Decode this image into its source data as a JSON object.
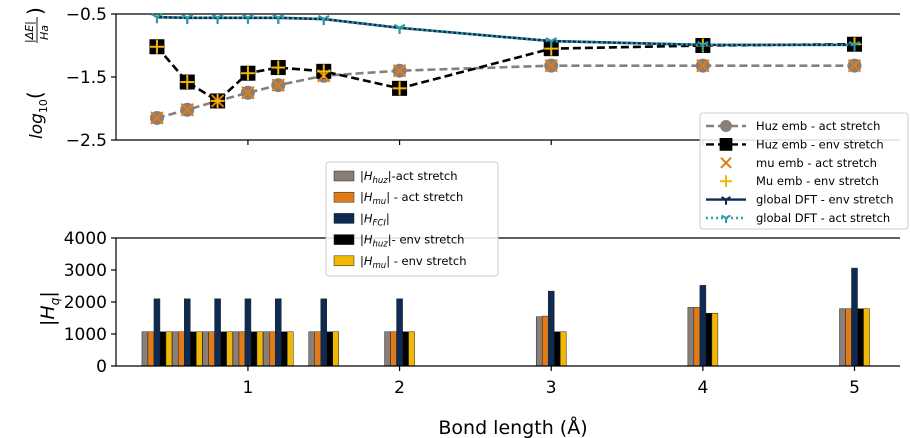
{
  "chart_data": [
    {
      "type": "line",
      "ylabel": "log10(|ΔE|/Ha)",
      "ylabel_parts": {
        "base": "log",
        "sub": "10",
        "num": "|ΔE|",
        "den": "Ha"
      },
      "xlim": [
        0.13,
        5.3
      ],
      "ylim": [
        -2.5,
        -0.5
      ],
      "yticks": [
        -0.5,
        -1.5,
        -2.5
      ],
      "ytick_labels": [
        "−0.5",
        "−1.5",
        "−2.5"
      ],
      "xticks": [
        1,
        2,
        3,
        4,
        5
      ],
      "grid": false,
      "legend_position": "bottom-right",
      "series": [
        {
          "name": "Huz emb - act stretch",
          "color": "#8a7f78",
          "style": "dashed",
          "marker": "circle",
          "x": [
            0.4,
            0.6,
            0.8,
            1.0,
            1.2,
            1.5,
            2.0,
            3.0,
            4.0,
            5.0
          ],
          "y": [
            -2.15,
            -2.02,
            -1.88,
            -1.75,
            -1.63,
            -1.48,
            -1.4,
            -1.32,
            -1.32,
            -1.32
          ]
        },
        {
          "name": "Huz emb - env stretch",
          "color": "#000000",
          "style": "dashed",
          "marker": "square",
          "x": [
            0.4,
            0.6,
            0.8,
            1.0,
            1.2,
            1.5,
            2.0,
            3.0,
            4.0,
            5.0
          ],
          "y": [
            -1.02,
            -1.58,
            -1.88,
            -1.44,
            -1.35,
            -1.41,
            -1.68,
            -1.05,
            -1.0,
            -0.98
          ]
        },
        {
          "name": "mu emb - act stretch",
          "color": "#e07b18",
          "style": "none",
          "marker": "x",
          "x": [
            0.4,
            0.6,
            0.8,
            1.0,
            1.2,
            1.5,
            2.0,
            3.0,
            4.0,
            5.0
          ],
          "y": [
            -2.15,
            -2.02,
            -1.88,
            -1.75,
            -1.63,
            -1.48,
            -1.4,
            -1.32,
            -1.32,
            -1.32
          ]
        },
        {
          "name": "Mu emb - env stretch",
          "color": "#f2b705",
          "style": "none",
          "marker": "plus",
          "x": [
            0.4,
            0.6,
            0.8,
            1.0,
            1.2,
            1.5,
            2.0,
            3.0,
            4.0,
            5.0
          ],
          "y": [
            -1.02,
            -1.58,
            -1.88,
            -1.44,
            -1.35,
            -1.41,
            -1.68,
            -1.05,
            -1.0,
            -0.98
          ]
        },
        {
          "name": "global DFT - env stretch",
          "color": "#0d2b55",
          "style": "solid",
          "marker": "tri_down",
          "x": [
            0.4,
            0.6,
            0.8,
            1.0,
            1.2,
            1.5,
            2.0,
            3.0,
            4.0,
            5.0
          ],
          "y": [
            -0.55,
            -0.56,
            -0.56,
            -0.56,
            -0.56,
            -0.58,
            -0.72,
            -0.93,
            -0.99,
            -0.99
          ]
        },
        {
          "name": "global DFT - act stretch",
          "color": "#2a9fa8",
          "style": "dotted",
          "marker": "tri_down",
          "x": [
            0.4,
            0.6,
            0.8,
            1.0,
            1.2,
            1.5,
            2.0,
            3.0,
            4.0,
            5.0
          ],
          "y": [
            -0.55,
            -0.56,
            -0.56,
            -0.56,
            -0.56,
            -0.58,
            -0.72,
            -0.93,
            -0.99,
            -0.99
          ]
        }
      ]
    },
    {
      "type": "bar",
      "ylabel": "|Hq|",
      "ylabel_parts": {
        "base": "H",
        "sub": "q"
      },
      "xlabel": "Bond length (Å)",
      "xlim": [
        0.13,
        5.3
      ],
      "ylim": [
        0,
        4000
      ],
      "yticks": [
        0,
        1000,
        2000,
        3000,
        4000
      ],
      "ytick_labels": [
        "0",
        "1000",
        "2000",
        "3000",
        "4000"
      ],
      "xticks": [
        1,
        2,
        3,
        4,
        5
      ],
      "xtick_labels": [
        "1",
        "2",
        "3",
        "4",
        "5"
      ],
      "grid": false,
      "legend_position": "upper-center",
      "x": [
        0.4,
        0.6,
        0.8,
        1.0,
        1.2,
        1.5,
        2.0,
        3.0,
        4.0,
        5.0
      ],
      "series": [
        {
          "name": "|Hhuz|-act stretch",
          "label_parts": [
            "|H",
            "huz",
            "|-act stretch"
          ],
          "color": "#8a7f78",
          "values": [
            1070,
            1070,
            1070,
            1070,
            1070,
            1070,
            1070,
            1540,
            1830,
            1790
          ]
        },
        {
          "name": "|Hmu| - act stretch",
          "label_parts": [
            "|H",
            "mu",
            "| - act stretch"
          ],
          "color": "#e07b18",
          "values": [
            1070,
            1070,
            1070,
            1070,
            1070,
            1070,
            1070,
            1560,
            1830,
            1790
          ]
        },
        {
          "name": "|HFCI|",
          "label_parts": [
            "|H",
            "FCI",
            "|"
          ],
          "color": "#0d2b55",
          "values": [
            2100,
            2100,
            2100,
            2100,
            2100,
            2100,
            2100,
            2340,
            2520,
            3060
          ]
        },
        {
          "name": "|Hhuz|- env stretch",
          "label_parts": [
            "|H",
            "huz",
            "|- env stretch"
          ],
          "color": "#000000",
          "values": [
            1070,
            1070,
            1070,
            1070,
            1070,
            1070,
            1070,
            1070,
            1650,
            1790
          ]
        },
        {
          "name": "|Hmu| - env stretch",
          "label_parts": [
            "|H",
            "mu",
            "| - env stretch"
          ],
          "color": "#f2b705",
          "values": [
            1070,
            1070,
            1070,
            1070,
            1070,
            1070,
            1070,
            1070,
            1650,
            1790
          ]
        }
      ]
    }
  ]
}
